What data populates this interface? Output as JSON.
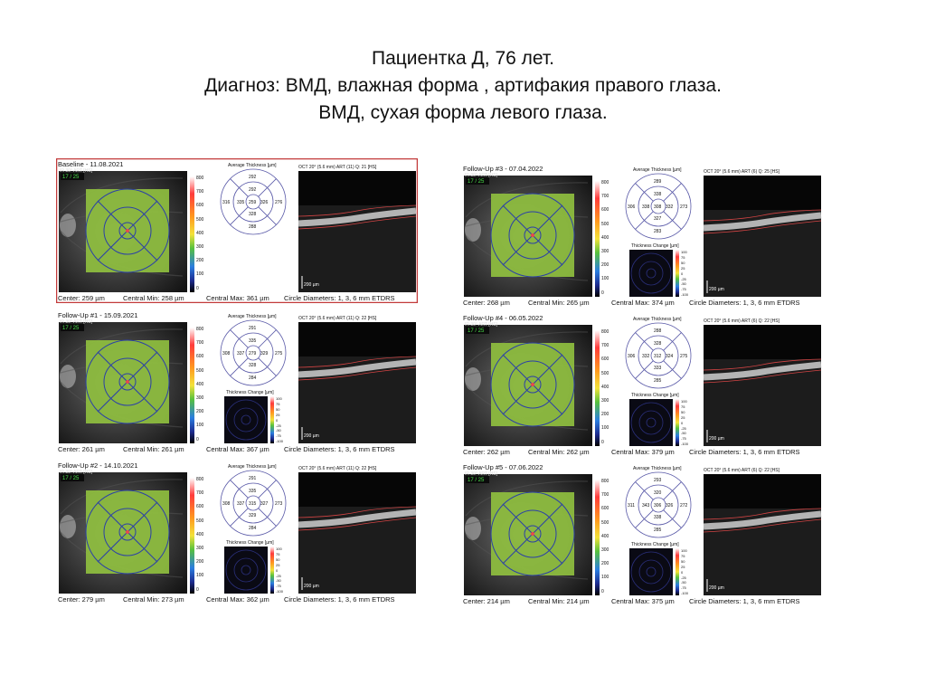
{
  "title": {
    "line1": "Пациентка Д, 76 лет.",
    "line2": "Диагноз: ВМД, влажная форма , артифакия правого глаза.",
    "line3": "ВМД, сухая форма левого глаза."
  },
  "panels": [
    {
      "visit": "Baseline - 11.08.2021",
      "badge": "17 / 25",
      "center": "Center: 259 µm",
      "central_min": "Central Min: 258 µm",
      "central_max": "Central Max: 361 µm",
      "circle_diam": "Circle Diameters: 1, 3, 6 mm ETDRS",
      "oct_header": "OCT 20° (5.6 mm) ART (11) Q: 21 [HS]",
      "map_title": "Average Thickness [µm]",
      "change_title": "",
      "grid": {
        "center": "259",
        "in_t": "335",
        "in_n": "326",
        "in_s": "292",
        "in_i": "328",
        "out_t": "316",
        "out_n": "276",
        "out_s": "292",
        "out_i": "288"
      },
      "has_change": false,
      "highlight": true
    },
    {
      "visit": "Follow-Up #1 - 15.09.2021",
      "badge": "17 / 25",
      "center": "Center: 261 µm",
      "central_min": "Central Min: 261 µm",
      "central_max": "Central Max: 367 µm",
      "circle_diam": "Circle Diameters: 1, 3, 6 mm ETDRS",
      "oct_header": "OCT 20° (5.6 mm) ART (11) Q: 22 [HS]",
      "map_title": "Average Thickness [µm]",
      "change_title": "Thickness Change [µm]",
      "grid": {
        "center": "279",
        "in_t": "337",
        "in_n": "329",
        "in_s": "335",
        "in_i": "328",
        "out_t": "308",
        "out_n": "275",
        "out_s": "291",
        "out_i": "284"
      },
      "has_change": true,
      "highlight": false
    },
    {
      "visit": "Follow-Up #2 - 14.10.2021",
      "badge": "17 / 25",
      "center": "Center: 279 µm",
      "central_min": "Central Min: 273 µm",
      "central_max": "Central Max: 362 µm",
      "circle_diam": "Circle Diameters: 1, 3, 6 mm ETDRS",
      "oct_header": "OCT 20° (5.6 mm) ART (11) Q: 22 [HS]",
      "map_title": "Average Thickness [µm]",
      "change_title": "Thickness Change [µm]",
      "grid": {
        "center": "315",
        "in_t": "337",
        "in_n": "327",
        "in_s": "335",
        "in_i": "329",
        "out_t": "308",
        "out_n": "273",
        "out_s": "291",
        "out_i": "284"
      },
      "has_change": true,
      "highlight": false
    },
    {
      "visit": "Follow-Up #3 - 07.04.2022",
      "badge": "17 / 25",
      "center": "Center: 268 µm",
      "central_min": "Central Min: 265 µm",
      "central_max": "Central Max: 374 µm",
      "circle_diam": "Circle Diameters: 1, 3, 6 mm ETDRS",
      "oct_header": "OCT 20° (5.6 mm) ART (6) Q: 25 [HS]",
      "map_title": "Average Thickness [µm]",
      "change_title": "Thickness Change [µm]",
      "grid": {
        "center": "308",
        "in_t": "338",
        "in_n": "332",
        "in_s": "338",
        "in_i": "327",
        "out_t": "306",
        "out_n": "273",
        "out_s": "289",
        "out_i": "283"
      },
      "has_change": true,
      "highlight": false
    },
    {
      "visit": "Follow-Up #4 - 06.05.2022",
      "badge": "17 / 25",
      "center": "Center: 262 µm",
      "central_min": "Central Min: 262 µm",
      "central_max": "Central Max: 379 µm",
      "circle_diam": "Circle Diameters: 1, 3, 6 mm ETDRS",
      "oct_header": "OCT 20° (5.6 mm) ART (6) Q: 22 [HS]",
      "map_title": "Average Thickness [µm]",
      "change_title": "Thickness Change [µm]",
      "grid": {
        "center": "312",
        "in_t": "332",
        "in_n": "324",
        "in_s": "328",
        "in_i": "333",
        "out_t": "306",
        "out_n": "275",
        "out_s": "288",
        "out_i": "285"
      },
      "has_change": true,
      "highlight": false
    },
    {
      "visit": "Follow-Up #5 - 07.06.2022",
      "badge": "17 / 25",
      "center": "Center: 214 µm",
      "central_min": "Central Min: 214 µm",
      "central_max": "Central Max: 375 µm",
      "circle_diam": "Circle Diameters: 1, 3, 6 mm ETDRS",
      "oct_header": "OCT 20° (5.6 mm) ART (6) Q: 22 [HS]",
      "map_title": "Average Thickness [µm]",
      "change_title": "Thickness Change [µm]",
      "grid": {
        "center": "306",
        "in_t": "343",
        "in_n": "326",
        "in_s": "320",
        "in_i": "338",
        "out_t": "311",
        "out_n": "272",
        "out_s": "293",
        "out_i": "285"
      },
      "has_change": true,
      "highlight": false
    }
  ],
  "scale_ticks": [
    "800",
    "700",
    "600",
    "500",
    "400",
    "300",
    "200",
    "100",
    "0"
  ],
  "change_ticks": [
    "100",
    "75",
    "50",
    "25",
    "0",
    "-25",
    "-50",
    "-75",
    "-100"
  ],
  "scale_bar": "200 µm",
  "ir_label": "IR 30° ART [HS]",
  "colors": {
    "highlight_border": "#c23a3a",
    "map_green": "#8fbf3f",
    "circle_blue": "#2b3fa8",
    "red_text": "#cc2222"
  }
}
